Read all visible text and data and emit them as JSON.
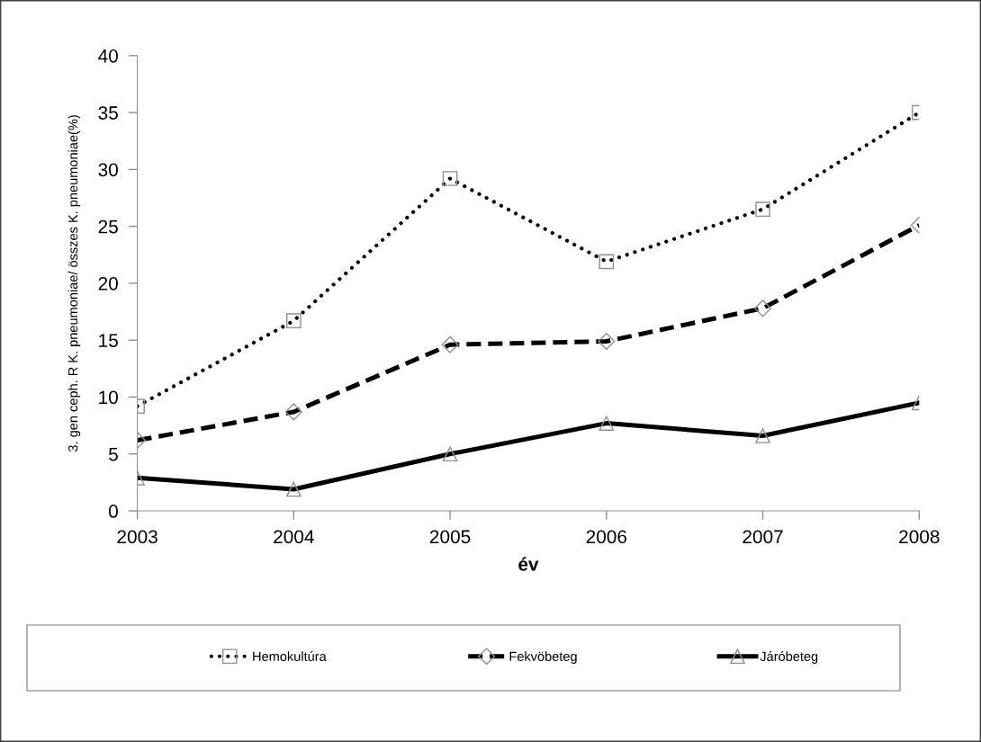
{
  "chart_data": {
    "type": "line",
    "xlabel": "év",
    "ylabel": "3. gen ceph. R K. pneumoniae/ összes K. pneumoniae(%)",
    "categories": [
      "2003",
      "2004",
      "2005",
      "2006",
      "2007",
      "2008"
    ],
    "series": [
      {
        "name": "Hemokultúra",
        "color": "#000000",
        "marker": "square",
        "line_style": "dotted",
        "values": [
          9.2,
          16.7,
          29.2,
          21.9,
          26.5,
          35.0
        ]
      },
      {
        "name": "Fekvöbeteg",
        "color": "#000000",
        "marker": "diamond",
        "line_style": "dashed",
        "values": [
          6.2,
          8.7,
          14.6,
          14.9,
          17.8,
          25.1
        ]
      },
      {
        "name": "Járóbeteg",
        "color": "#000000",
        "marker": "triangle",
        "line_style": "solid",
        "values": [
          2.9,
          1.9,
          5.0,
          7.7,
          6.6,
          9.5
        ]
      }
    ],
    "ylim": [
      0,
      40
    ],
    "yticks": [
      0,
      5,
      10,
      15,
      20,
      25,
      30,
      35,
      40
    ],
    "grid": false,
    "legend": "bottom"
  }
}
